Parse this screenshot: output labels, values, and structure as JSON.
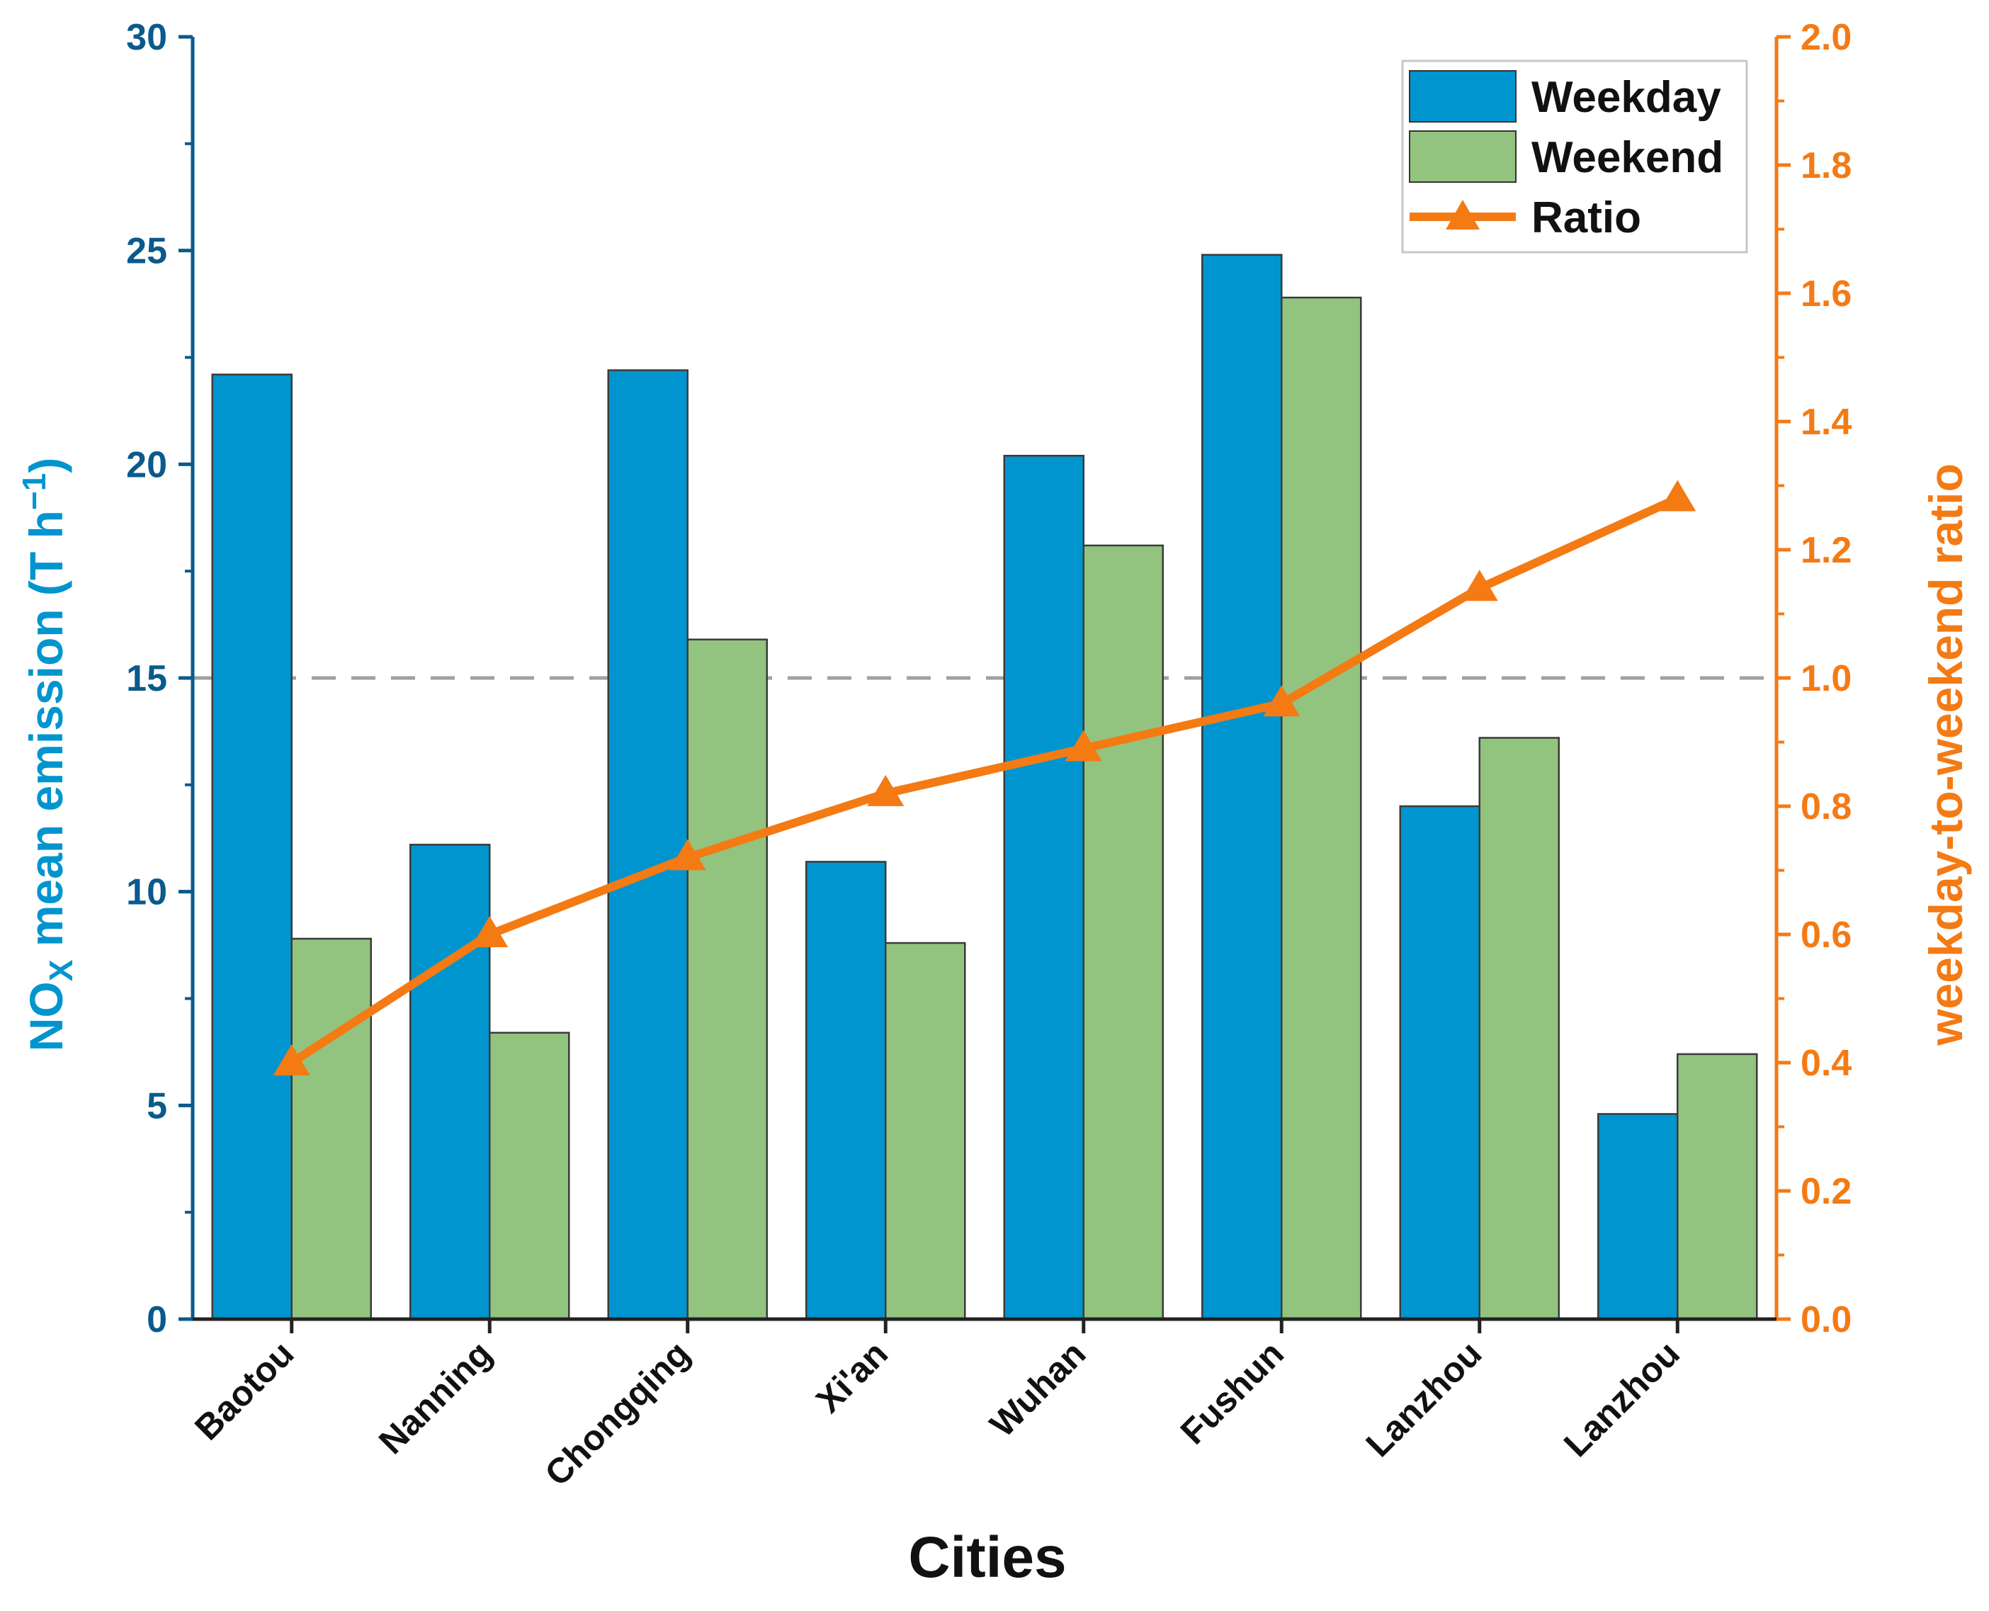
{
  "chart_data": {
    "type": "bar",
    "categories": [
      "Baotou",
      "Nanning",
      "Chongqing",
      "Xi'an",
      "Wuhan",
      "Fushun",
      "Lanzhou",
      "Lanzhou"
    ],
    "series": [
      {
        "name": "Weekday",
        "type": "bar",
        "axis": "left",
        "color": "#0095cf",
        "values": [
          22.1,
          11.1,
          22.2,
          10.7,
          20.2,
          24.9,
          12.0,
          4.8
        ]
      },
      {
        "name": "Weekend",
        "type": "bar",
        "axis": "left",
        "color": "#93c47f",
        "values": [
          8.9,
          6.7,
          15.9,
          8.8,
          18.1,
          23.9,
          13.6,
          6.2
        ]
      },
      {
        "name": "Ratio",
        "type": "line",
        "axis": "right",
        "color": "#f47a14",
        "marker": "triangle",
        "values": [
          0.4,
          0.6,
          0.72,
          0.82,
          0.89,
          0.96,
          1.14,
          1.28
        ]
      }
    ],
    "xlabel": "Cities",
    "ylabel": {
      "main": "NO",
      "sub": "X",
      "rest": " mean emission (T h",
      "sup": "−1",
      "close": ")"
    },
    "y2label": "weekday-to-weekend ratio",
    "ylim": [
      0,
      30
    ],
    "y2lim": [
      0,
      2.0
    ],
    "yticks": [
      "0",
      "5",
      "10",
      "15",
      "20",
      "25",
      "30"
    ],
    "y2ticks": [
      "0.0",
      "0.2",
      "0.4",
      "0.6",
      "0.8",
      "1.0",
      "1.2",
      "1.4",
      "1.6",
      "1.8",
      "2.0"
    ],
    "reference_line": {
      "axis": "right",
      "value": 1.0,
      "style": "dashed",
      "color": "#a0a0a0"
    },
    "legend": {
      "position": "top-right",
      "entries": [
        "Weekday",
        "Weekend",
        "Ratio"
      ]
    },
    "axis_colors": {
      "left": "#0a5a8c",
      "left_label": "#0095cf",
      "right": "#f47a14"
    }
  }
}
